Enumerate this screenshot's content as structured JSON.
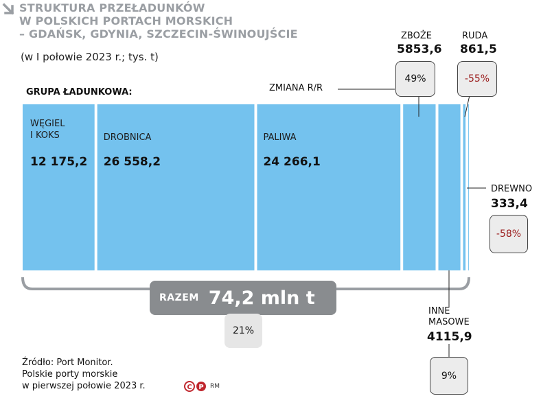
{
  "title_lines": [
    "STRUKTURA PRZEŁADUNKÓW",
    "W POLSKICH PORTACH MORSKICH",
    "– GDAŃSK, GDYNIA, SZCZECIN-ŚWINOUJŚCIE"
  ],
  "subtitle": "(w I połowie 2023 r.; tys. t)",
  "group_label": "GRUPA ŁADUNKOWA:",
  "change_label": "ZMIANA R/R",
  "total": {
    "label": "RAZEM",
    "value": "74,2 mln t",
    "change": "21%"
  },
  "source_lines": [
    "Źródło: Port Monitor.",
    "Polskie porty morskie",
    "w pierwszej połowie 2023 r."
  ],
  "author": "RM",
  "logo_text": "CP",
  "colors": {
    "bar": "#74c2ee",
    "title": "#9a9ea3",
    "negative": "#9a1b1b",
    "total_box": "#898c8f"
  },
  "chart_data": {
    "type": "bar",
    "subtype": "stacked-proportional",
    "unit": "tys. t",
    "categories": [
      "WĘGIEL I KOKS",
      "DROBNICA",
      "PALIWA",
      "ZBOŻE",
      "INNE MASOWE",
      "RUDA",
      "DREWNO"
    ],
    "values": [
      12175.2,
      26558.2,
      24266.1,
      5853.6,
      4115.9,
      861.5,
      333.4
    ],
    "labels": [
      "12 175,2",
      "26 558,2",
      "24 266,1",
      "5853,6",
      "4115,9",
      "861,5",
      "333,4"
    ],
    "name_lines": [
      [
        "WĘGIEL",
        "I KOKS"
      ],
      [
        "DROBNICA"
      ],
      [
        "PALIWA"
      ],
      [
        "ZBOŻE"
      ],
      [
        "INNE",
        "MASOWE"
      ],
      [
        "RUDA"
      ],
      [
        "DREWNO"
      ]
    ],
    "changes": [
      "",
      "",
      "",
      "49%",
      "9%",
      "-55%",
      "-58%"
    ]
  }
}
